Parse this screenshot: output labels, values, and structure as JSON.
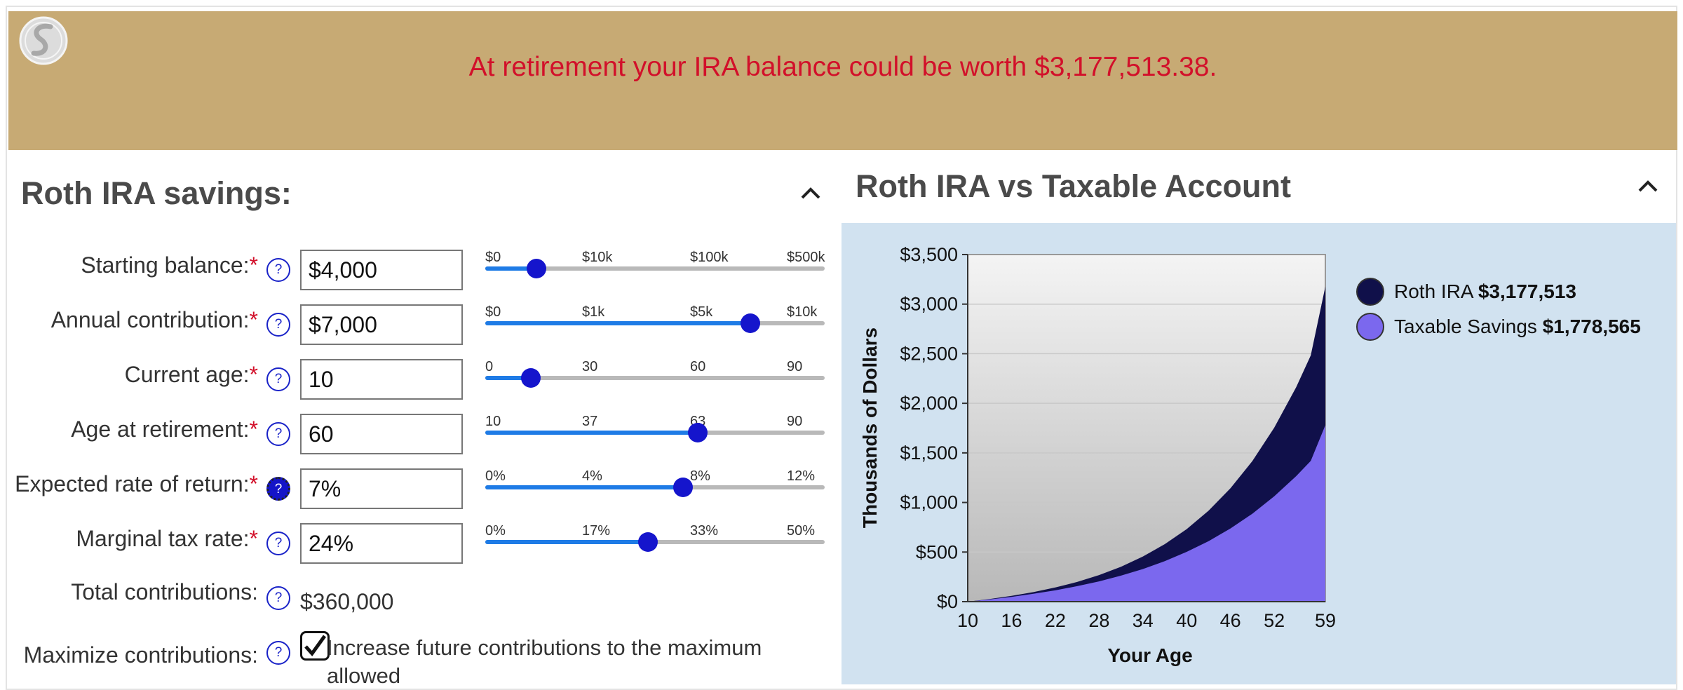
{
  "banner": {
    "message": "At retirement your IRA balance could be worth $3,177,513.38."
  },
  "left_panel": {
    "title": "Roth IRA savings:",
    "rows": [
      {
        "label": "Starting balance:",
        "required": "*",
        "help": "?",
        "value": "$4,000",
        "ticks": [
          "$0",
          "$10k",
          "$100k",
          "$500k"
        ],
        "position": 0.15
      },
      {
        "label": "Annual contribution:",
        "required": "*",
        "help": "?",
        "value": "$7,000",
        "ticks": [
          "$0",
          "$1k",
          "$5k",
          "$10k"
        ],
        "position": 0.78
      },
      {
        "label": "Current age:",
        "required": "*",
        "help": "?",
        "value": "10",
        "ticks": [
          "0",
          "30",
          "60",
          "90"
        ],
        "position": 0.1333
      },
      {
        "label": "Age at retirement:",
        "required": "*",
        "help": "?",
        "value": "60",
        "ticks": [
          "10",
          "37",
          "63",
          "90"
        ],
        "position": 0.625
      },
      {
        "label": "Expected rate of return:",
        "required": "*",
        "help": "?",
        "value": "7%",
        "ticks": [
          "0%",
          "4%",
          "8%",
          "12%"
        ],
        "position": 0.5833
      },
      {
        "label": "Marginal tax rate:",
        "required": "*",
        "help": "?",
        "value": "24%",
        "ticks": [
          "0%",
          "17%",
          "33%",
          "50%"
        ],
        "position": 0.48
      }
    ],
    "total": {
      "label": "Total contributions:",
      "help": "?",
      "value": "$360,000"
    },
    "maximize": {
      "label": "Maximize contributions:",
      "help": "?",
      "checked": true,
      "text_line1": "Increase future contributions to the maximum",
      "text_line2": "allowed"
    }
  },
  "right_panel": {
    "title": "Roth IRA vs Taxable Account"
  },
  "colors": {
    "roth": "#10104a",
    "taxable": "#7b68ee",
    "banner": "#c7aa74",
    "message": "#d2102a",
    "accent": "#1515cc",
    "slider_fill": "#1e7be6"
  },
  "icons": {
    "collapse": "chevron-up-icon",
    "help": "question-circle-icon",
    "logo": "globe-logo-icon",
    "check": "checkmark-icon"
  },
  "chart_data": {
    "type": "area",
    "xlabel": "Your Age",
    "ylabel": "Thousands of Dollars",
    "x_ticks": [
      "10",
      "16",
      "22",
      "28",
      "34",
      "40",
      "46",
      "52",
      "59"
    ],
    "y_ticks": [
      "$0",
      "$500",
      "$1,000",
      "$1,500",
      "$2,000",
      "$2,500",
      "$3,000",
      "$3,500"
    ],
    "x_range": [
      10,
      59
    ],
    "ylim": [
      0,
      3500
    ],
    "grid": true,
    "legend_position": "right",
    "x": [
      10,
      13,
      16,
      19,
      22,
      25,
      28,
      31,
      34,
      37,
      40,
      43,
      46,
      49,
      52,
      55,
      57,
      59
    ],
    "series": [
      {
        "name": "Roth IRA",
        "legend_value": "$3,177,513",
        "values": [
          0,
          26,
          58,
          96,
          143,
          199,
          268,
          352,
          455,
          580,
          731,
          917,
          1143,
          1418,
          1754,
          2163,
          2483,
          3178
        ]
      },
      {
        "name": "Taxable Savings",
        "legend_value": "$1,778,565",
        "values": [
          0,
          22,
          48,
          79,
          114,
          156,
          204,
          262,
          329,
          409,
          502,
          610,
          738,
          887,
          1062,
          1266,
          1420,
          1779
        ]
      }
    ]
  }
}
